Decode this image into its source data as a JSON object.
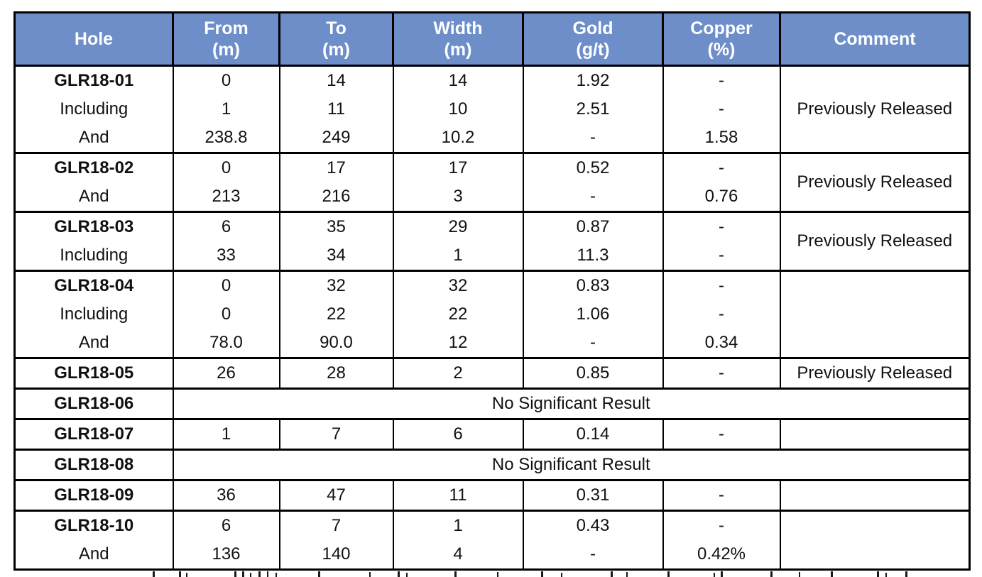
{
  "table": {
    "header_bg": "#6D8EC9",
    "border_color": "#000000",
    "columns": [
      "Hole",
      "From\n(m)",
      "To\n(m)",
      "Width\n(m)",
      "Gold\n(g/t)",
      "Copper\n(%)",
      "Comment"
    ],
    "groups": [
      {
        "comment": "Previously Released",
        "rows": [
          {
            "hole": "GLR18-01",
            "bold": true,
            "from": "0",
            "to": "14",
            "width": "14",
            "gold": "1.92",
            "copper": "-"
          },
          {
            "hole": "Including",
            "bold": false,
            "from": "1",
            "to": "11",
            "width": "10",
            "gold": "2.51",
            "copper": "-"
          },
          {
            "hole": "And",
            "bold": false,
            "from": "238.8",
            "to": "249",
            "width": "10.2",
            "gold": "-",
            "copper": "1.58"
          }
        ]
      },
      {
        "comment": "Previously Released",
        "rows": [
          {
            "hole": "GLR18-02",
            "bold": true,
            "from": "0",
            "to": "17",
            "width": "17",
            "gold": "0.52",
            "copper": "-"
          },
          {
            "hole": "And",
            "bold": false,
            "from": "213",
            "to": "216",
            "width": "3",
            "gold": "-",
            "copper": "0.76"
          }
        ]
      },
      {
        "comment": "Previously Released",
        "rows": [
          {
            "hole": "GLR18-03",
            "bold": true,
            "from": "6",
            "to": "35",
            "width": "29",
            "gold": "0.87",
            "copper": "-"
          },
          {
            "hole": "Including",
            "bold": false,
            "from": "33",
            "to": "34",
            "width": "1",
            "gold": "11.3",
            "copper": "-"
          }
        ]
      },
      {
        "comment": "",
        "rows": [
          {
            "hole": "GLR18-04",
            "bold": true,
            "from": "0",
            "to": "32",
            "width": "32",
            "gold": "0.83",
            "copper": "-"
          },
          {
            "hole": "Including",
            "bold": false,
            "from": "0",
            "to": "22",
            "width": "22",
            "gold": "1.06",
            "copper": "-"
          },
          {
            "hole": "And",
            "bold": false,
            "from": "78.0",
            "to": "90.0",
            "width": "12",
            "gold": "-",
            "copper": "0.34"
          }
        ]
      },
      {
        "comment": "Previously Released",
        "rows": [
          {
            "hole": "GLR18-05",
            "bold": true,
            "from": "26",
            "to": "28",
            "width": "2",
            "gold": "0.85",
            "copper": "-"
          }
        ]
      },
      {
        "rows": [
          {
            "hole": "GLR18-06",
            "bold": true,
            "merged": "No Significant Result"
          }
        ]
      },
      {
        "comment": "",
        "rows": [
          {
            "hole": "GLR18-07",
            "bold": true,
            "from": "1",
            "to": "7",
            "width": "6",
            "gold": "0.14",
            "copper": "-"
          }
        ]
      },
      {
        "rows": [
          {
            "hole": "GLR18-08",
            "bold": true,
            "merged": "No Significant Result"
          }
        ]
      },
      {
        "comment": "",
        "rows": [
          {
            "hole": "GLR18-09",
            "bold": true,
            "from": "36",
            "to": "47",
            "width": "11",
            "gold": "0.31",
            "copper": "-"
          }
        ]
      },
      {
        "comment": "",
        "rows": [
          {
            "hole": "GLR18-10",
            "bold": true,
            "from": "6",
            "to": "7",
            "width": "1",
            "gold": "0.43",
            "copper": "-"
          },
          {
            "hole": "And",
            "bold": false,
            "from": "136",
            "to": "140",
            "width": "4",
            "gold": "-",
            "copper": "0.42%"
          }
        ]
      }
    ]
  }
}
